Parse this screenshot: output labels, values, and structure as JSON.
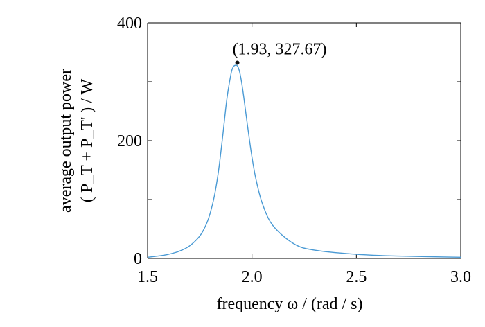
{
  "chart_data": {
    "type": "line",
    "title": "",
    "xlabel": "frequency ω / (rad / s)",
    "ylabel_line1": "average output power",
    "ylabel_line2": "( P_T + P_T' ) / W",
    "xlim": [
      1.5,
      3.0
    ],
    "ylim": [
      0,
      400
    ],
    "xticks": [
      1.5,
      2.0,
      2.5,
      3.0
    ],
    "xtick_labels": [
      "1.5",
      "2.0",
      "2.5",
      "3.0"
    ],
    "yticks": [
      0,
      200,
      400
    ],
    "ytick_labels": [
      "0",
      "200",
      "400"
    ],
    "grid": false,
    "line_color": "#4a9ad4",
    "marker_color": "#111111",
    "annotation": {
      "label": "(1.93, 327.67)",
      "x": 1.93,
      "y": 327.67
    },
    "series": [
      {
        "x": [
          1.5,
          1.55,
          1.6,
          1.65,
          1.7,
          1.75,
          1.78,
          1.8,
          1.82,
          1.84,
          1.86,
          1.88,
          1.9,
          1.91,
          1.92,
          1.93,
          1.94,
          1.95,
          1.96,
          1.98,
          2.0,
          2.02,
          2.05,
          2.1,
          2.2,
          2.3,
          2.5,
          2.7,
          3.0
        ],
        "y": [
          2,
          4,
          7,
          12,
          21,
          38,
          57,
          77,
          106,
          149,
          208,
          271,
          314,
          325,
          328,
          327,
          318,
          300,
          276,
          222,
          172,
          133,
          93,
          56,
          25,
          14,
          7,
          4,
          2
        ]
      }
    ]
  }
}
